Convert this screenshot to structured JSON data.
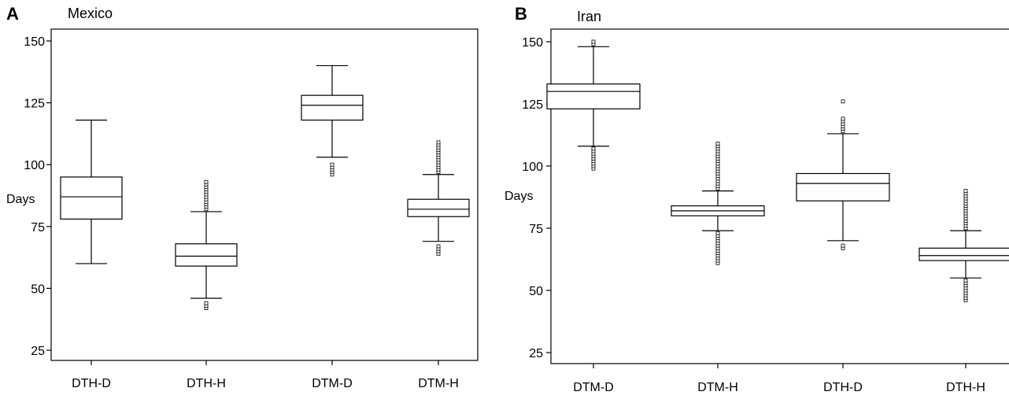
{
  "chart_data": [
    {
      "type": "boxplot",
      "panel_label": "A",
      "title": "Mexico",
      "ylabel": "Days",
      "ylim": [
        20,
        153
      ],
      "yticks": [
        25,
        50,
        75,
        100,
        125,
        150
      ],
      "grid": false,
      "categories": [
        "DTH-D",
        "DTH-H",
        "DTM-D",
        "DTM-H"
      ],
      "boxes": [
        {
          "category": "DTH-D",
          "whisker_low": 60,
          "q1": 78,
          "median": 87,
          "q3": 95,
          "whisker_high": 118,
          "outliers": []
        },
        {
          "category": "DTH-H",
          "whisker_low": 46,
          "q1": 59,
          "median": 63,
          "q3": 68,
          "whisker_high": 81,
          "outliers": [
            42,
            43,
            44,
            82,
            83,
            84,
            85,
            86,
            87,
            88,
            89,
            90,
            91,
            92,
            93
          ]
        },
        {
          "category": "DTM-D",
          "whisker_low": 103,
          "q1": 118,
          "median": 124,
          "q3": 128,
          "whisker_high": 140,
          "outliers": [
            96,
            97,
            98,
            99,
            100
          ]
        },
        {
          "category": "DTM-H",
          "whisker_low": 69,
          "q1": 79,
          "median": 82,
          "q3": 86,
          "whisker_high": 96,
          "outliers": [
            64,
            65,
            66,
            67,
            97,
            98,
            99,
            100,
            101,
            102,
            103,
            104,
            105,
            106,
            107,
            108,
            109
          ]
        }
      ]
    },
    {
      "type": "boxplot",
      "panel_label": "B",
      "title": "Iran",
      "ylabel": "Days",
      "ylim": [
        20,
        153
      ],
      "yticks": [
        25,
        50,
        75,
        100,
        125,
        150
      ],
      "grid": false,
      "categories": [
        "DTM-D",
        "DTM-H",
        "DTH-D",
        "DTH-H"
      ],
      "boxes": [
        {
          "category": "DTM-D",
          "whisker_low": 108,
          "q1": 123,
          "median": 130,
          "q3": 133,
          "whisker_high": 148,
          "outliers": [
            99,
            100,
            101,
            102,
            103,
            104,
            105,
            106,
            107,
            149,
            150
          ]
        },
        {
          "category": "DTM-H",
          "whisker_low": 74,
          "q1": 80,
          "median": 82,
          "q3": 84,
          "whisker_high": 90,
          "outliers": [
            61,
            62,
            63,
            64,
            65,
            66,
            67,
            68,
            69,
            70,
            71,
            72,
            73,
            91,
            92,
            93,
            94,
            95,
            96,
            97,
            98,
            99,
            100,
            101,
            102,
            103,
            104,
            105,
            106,
            107,
            108,
            109
          ]
        },
        {
          "category": "DTH-D",
          "whisker_low": 70,
          "q1": 86,
          "median": 93,
          "q3": 97,
          "whisker_high": 113,
          "outliers": [
            67,
            68,
            114,
            115,
            116,
            117,
            118,
            119,
            126
          ]
        },
        {
          "category": "DTH-H",
          "whisker_low": 55,
          "q1": 62,
          "median": 64,
          "q3": 67,
          "whisker_high": 74,
          "outliers": [
            46,
            47,
            48,
            49,
            50,
            51,
            52,
            53,
            54,
            75,
            76,
            77,
            78,
            79,
            80,
            81,
            82,
            83,
            84,
            85,
            86,
            87,
            88,
            89,
            90
          ]
        }
      ]
    }
  ]
}
